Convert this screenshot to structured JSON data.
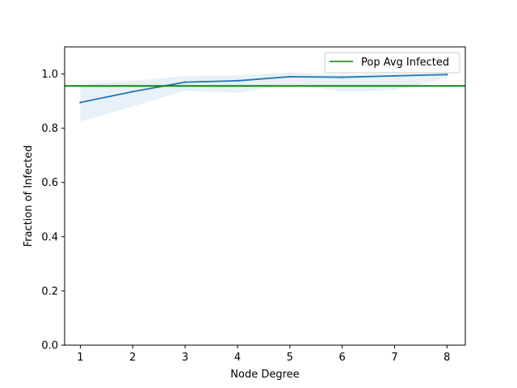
{
  "chart_data": {
    "type": "line",
    "xlabel": "Node Degree",
    "ylabel": "Fraction of Infected",
    "xlim": [
      0.7,
      8.35
    ],
    "ylim": [
      0.0,
      1.1
    ],
    "xticks": [
      1,
      2,
      3,
      4,
      5,
      6,
      7,
      8
    ],
    "yticks": [
      0.0,
      0.2,
      0.4,
      0.6,
      0.8,
      1.0
    ],
    "series": [
      {
        "color": "#1f77b4",
        "x": [
          1,
          2,
          3,
          4,
          5,
          6,
          7,
          8
        ],
        "y": [
          0.895,
          0.935,
          0.97,
          0.975,
          0.99,
          0.988,
          0.993,
          0.998
        ],
        "band_lower": [
          0.825,
          0.88,
          0.938,
          0.93,
          0.962,
          0.935,
          0.94,
          0.985
        ],
        "band_upper": [
          0.96,
          0.975,
          0.993,
          0.995,
          1.005,
          0.998,
          1.0,
          1.003
        ],
        "band_color": "#1f77b4"
      }
    ],
    "hline": {
      "name": "Pop Avg Infected",
      "y": 0.956,
      "color": "#008000"
    },
    "legend": {
      "placement": "top-right",
      "entries": [
        "Pop Avg Infected"
      ]
    },
    "grid": false
  }
}
